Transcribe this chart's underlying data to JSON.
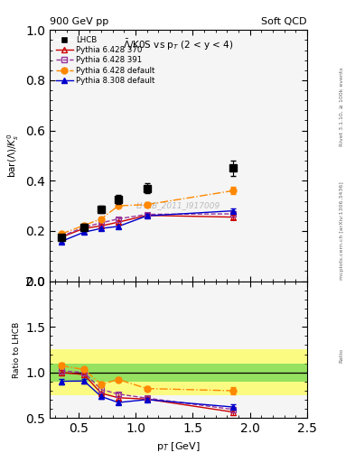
{
  "title_top": "900 GeV pp",
  "title_top_right": "Soft QCD",
  "plot_title": "$\\bar{\\Lambda}$/K0S vs p$_{T}$ (2 < y < 4)",
  "ylabel_main": "bar($\\Lambda$)/$K^0_s$",
  "ylabel_ratio": "Ratio to LHCB",
  "xlabel": "p$_{T}$ [GeV]",
  "watermark": "LHCB_2011_I917009",
  "right_label_top": "Rivet 3.1.10, ≥ 100k events",
  "right_label_bot": "mcplots.cern.ch [arXiv:1306.3436]",
  "lhcb_x": [
    0.35,
    0.55,
    0.7,
    0.85,
    1.1,
    1.85
  ],
  "lhcb_y": [
    0.175,
    0.215,
    0.285,
    0.325,
    0.37,
    0.45
  ],
  "lhcb_yerr": [
    0.01,
    0.012,
    0.015,
    0.018,
    0.02,
    0.03
  ],
  "py6_370_x": [
    0.35,
    0.55,
    0.7,
    0.85,
    1.1,
    1.85
  ],
  "py6_370_y": [
    0.175,
    0.21,
    0.22,
    0.235,
    0.262,
    0.255
  ],
  "py6_370_yerr": [
    0.005,
    0.005,
    0.005,
    0.006,
    0.007,
    0.01
  ],
  "py6_391_x": [
    0.35,
    0.55,
    0.7,
    0.85,
    1.1,
    1.85
  ],
  "py6_391_y": [
    0.178,
    0.215,
    0.232,
    0.248,
    0.266,
    0.268
  ],
  "py6_391_yerr": [
    0.005,
    0.005,
    0.005,
    0.006,
    0.007,
    0.01
  ],
  "py6_def_x": [
    0.35,
    0.55,
    0.7,
    0.85,
    1.1,
    1.85
  ],
  "py6_def_y": [
    0.188,
    0.222,
    0.248,
    0.3,
    0.305,
    0.36
  ],
  "py6_def_yerr": [
    0.005,
    0.006,
    0.007,
    0.008,
    0.009,
    0.014
  ],
  "py8_def_x": [
    0.35,
    0.55,
    0.7,
    0.85,
    1.1,
    1.85
  ],
  "py8_def_y": [
    0.158,
    0.195,
    0.21,
    0.218,
    0.26,
    0.28
  ],
  "py8_def_yerr": [
    0.005,
    0.005,
    0.005,
    0.006,
    0.007,
    0.01
  ],
  "ratio_py6_370_y": [
    1.0,
    0.977,
    0.772,
    0.723,
    0.708,
    0.567
  ],
  "ratio_py6_391_y": [
    1.017,
    1.0,
    0.814,
    0.763,
    0.719,
    0.596
  ],
  "ratio_py6_def_y": [
    1.074,
    1.033,
    0.87,
    0.923,
    0.824,
    0.8
  ],
  "ratio_py8_def_y": [
    0.903,
    0.907,
    0.737,
    0.671,
    0.703,
    0.622
  ],
  "ratio_py6_370_err": [
    0.03,
    0.025,
    0.022,
    0.02,
    0.02,
    0.03
  ],
  "ratio_py6_391_err": [
    0.03,
    0.025,
    0.022,
    0.02,
    0.02,
    0.03
  ],
  "ratio_py6_def_err": [
    0.03,
    0.028,
    0.025,
    0.025,
    0.025,
    0.035
  ],
  "ratio_py8_def_err": [
    0.03,
    0.025,
    0.022,
    0.02,
    0.02,
    0.03
  ],
  "band_yellow_low": 0.75,
  "band_yellow_high": 1.25,
  "band_green_low": 0.9,
  "band_green_high": 1.1,
  "xlim": [
    0.25,
    2.5
  ],
  "ylim_main": [
    0.0,
    1.0
  ],
  "ylim_ratio": [
    0.5,
    2.0
  ],
  "color_lhcb": "#000000",
  "color_py6_370": "#cc0000",
  "color_py6_391": "#993399",
  "color_py6_def": "#ff8800",
  "color_py8_def": "#0000cc",
  "bg_color": "#f5f5f5"
}
